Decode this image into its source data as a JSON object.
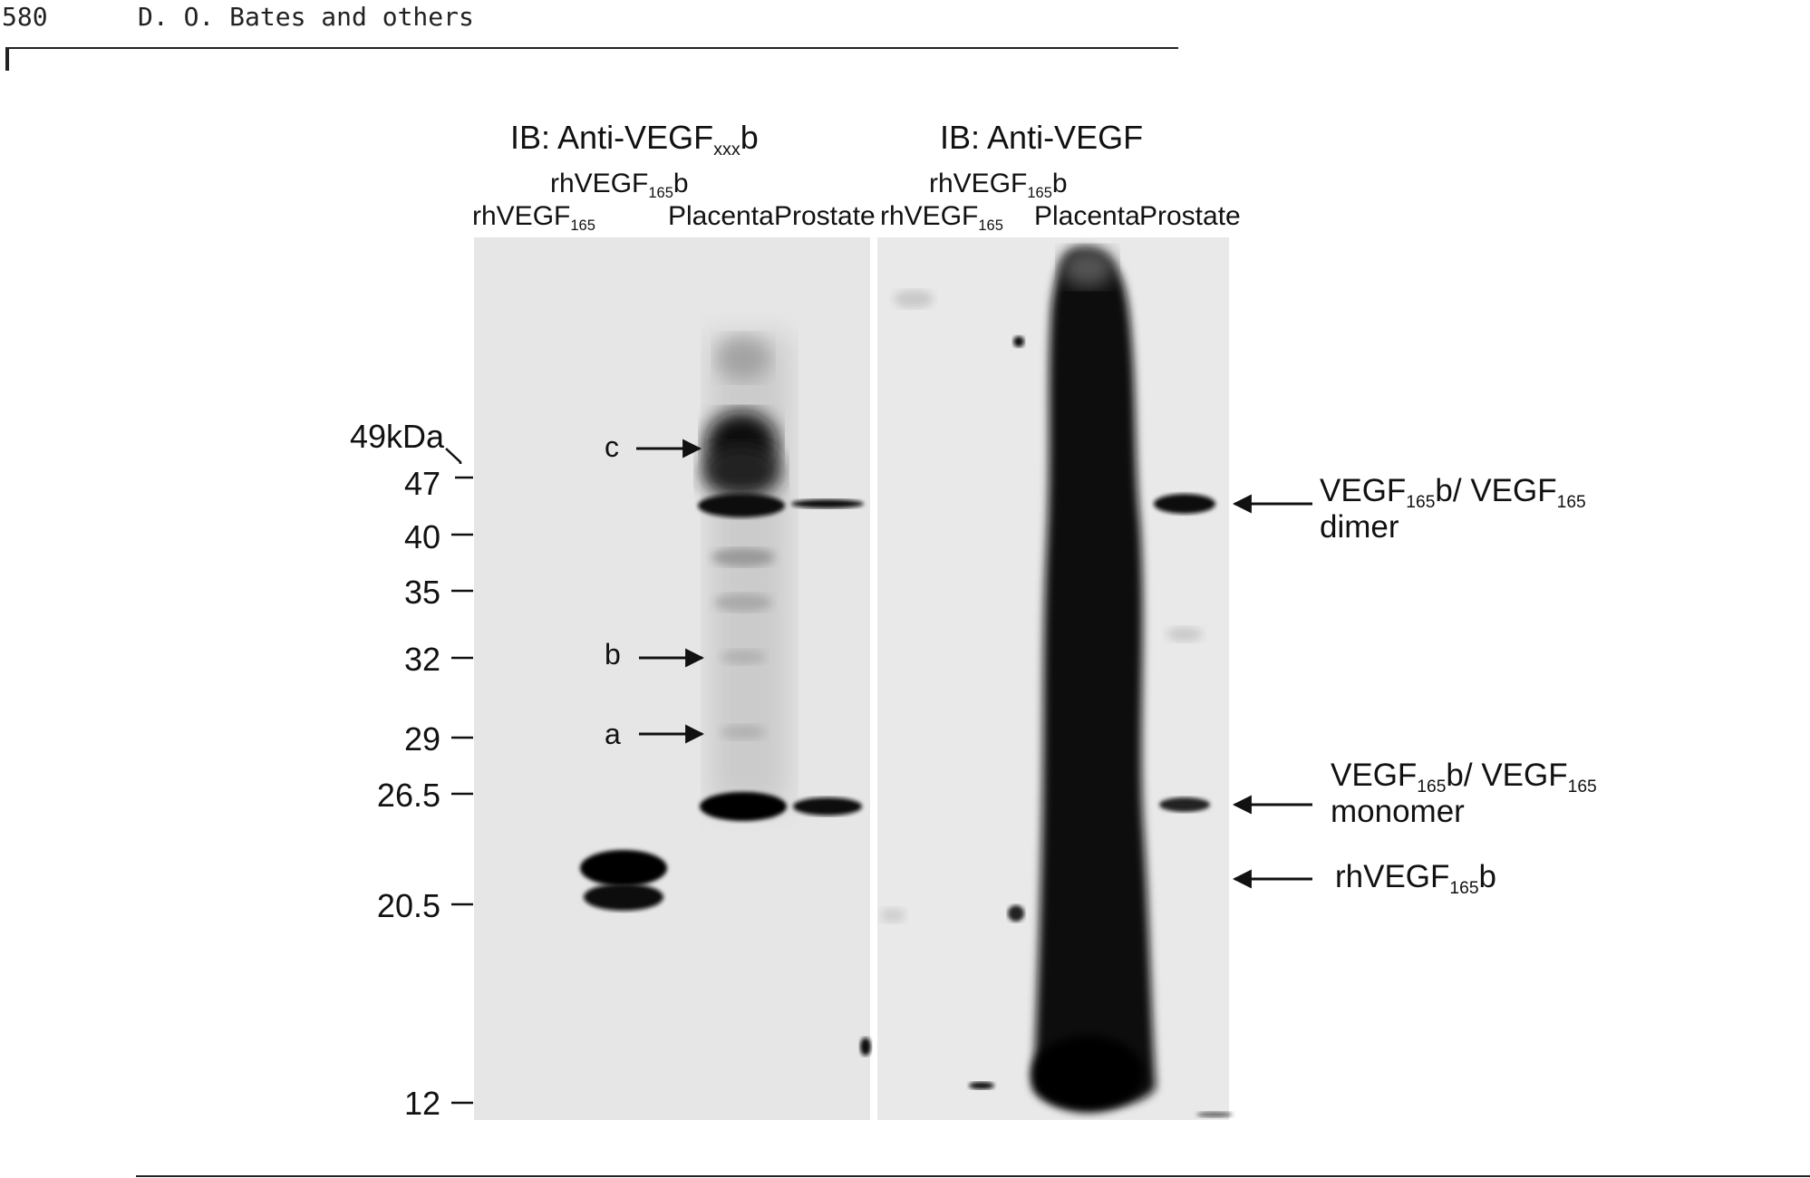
{
  "header": {
    "page_number": "580",
    "authors": "D. O. Bates and others"
  },
  "figure": {
    "left_blot": {
      "title": {
        "main": "IB: Anti-VEGF",
        "sub": "xxx",
        "suffix": "b"
      },
      "lanes": {
        "lane2": {
          "main": "rhVEGF",
          "sub": "165",
          "suffix": "b"
        },
        "lane1": {
          "main": "rhVEGF",
          "sub": "165"
        },
        "lane3": "Placenta",
        "lane4": "Prostate"
      },
      "band_labels": [
        "c",
        "b",
        "a"
      ]
    },
    "right_blot": {
      "title": "IB: Anti-VEGF",
      "lanes": {
        "lane2": {
          "main": "rhVEGF",
          "sub": "165",
          "suffix": "b"
        },
        "lane1": {
          "main": "rhVEGF",
          "sub": "165"
        },
        "lane3": "Placenta",
        "lane4": "Prostate"
      },
      "annotations": {
        "dimer": {
          "p1": "VEGF",
          "s1": "165",
          "p2": "b/ VEGF",
          "s2": "165",
          "line2": "dimer"
        },
        "monomer": {
          "p1": "VEGF",
          "s1": "165",
          "p2": "b/ VEGF",
          "s2": "165",
          "line2": "monomer"
        },
        "rh": {
          "p1": "rhVEGF",
          "s1": "165",
          "p2": "b"
        }
      }
    },
    "mw_markers": {
      "top_label": "49kDa",
      "values": [
        "47",
        "40",
        "35",
        "32",
        "29",
        "26.5",
        "20.5",
        "12"
      ]
    }
  }
}
